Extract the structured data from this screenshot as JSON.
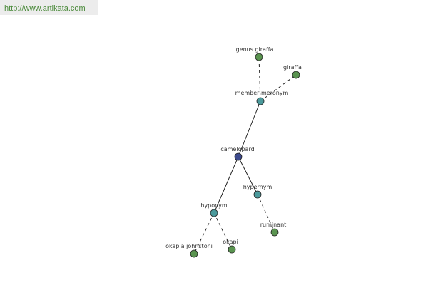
{
  "header": {
    "url": "http://www.artikata.com"
  },
  "nodes": [
    {
      "label": "camelopard"
    },
    {
      "label": "member meronym"
    },
    {
      "label": "genus giraffa"
    },
    {
      "label": "giraffa"
    },
    {
      "label": "hypernym"
    },
    {
      "label": "ruminant"
    },
    {
      "label": "hyponym"
    },
    {
      "label": "okapia johnstoni"
    },
    {
      "label": "okapi"
    }
  ]
}
